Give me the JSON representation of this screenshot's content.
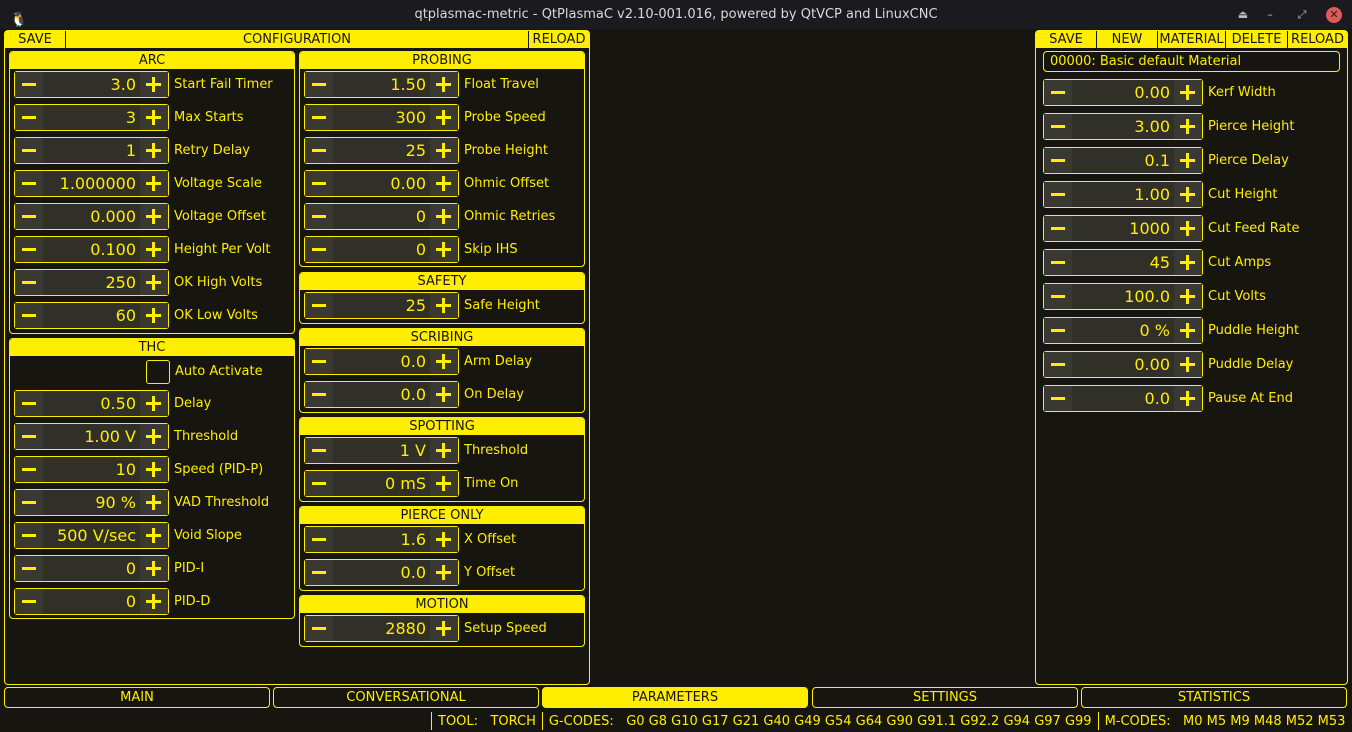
{
  "window": {
    "title": "qtplasmac-metric - QtPlasmaC v2.10-001.016, powered by QtVCP and LinuxCNC"
  },
  "config_header": {
    "save": "SAVE",
    "title": "CONFIGURATION",
    "reload": "RELOAD"
  },
  "groups": [
    {
      "id": "arc",
      "title": "ARC",
      "rows": [
        [
          "3.0",
          "Start Fail Timer"
        ],
        [
          "3",
          "Max Starts"
        ],
        [
          "1",
          "Retry Delay"
        ],
        [
          "1.000000",
          "Voltage Scale"
        ],
        [
          "0.000",
          "Voltage Offset"
        ],
        [
          "0.100",
          "Height Per Volt"
        ],
        [
          "250",
          "OK High Volts"
        ],
        [
          "60",
          "OK Low Volts"
        ]
      ]
    },
    {
      "id": "thc",
      "title": "THC",
      "checkbox": {
        "label": "Auto Activate",
        "checked": false
      },
      "rows": [
        [
          "0.50",
          "Delay"
        ],
        [
          "1.00 V",
          "Threshold"
        ],
        [
          "10",
          "Speed (PID-P)"
        ],
        [
          "90 %",
          "VAD Threshold"
        ],
        [
          "500 V/sec",
          "Void Slope"
        ],
        [
          "0",
          "PID-I"
        ],
        [
          "0",
          "PID-D"
        ]
      ]
    },
    {
      "id": "probing",
      "title": "PROBING",
      "rows": [
        [
          "1.50",
          "Float Travel"
        ],
        [
          "300",
          "Probe Speed"
        ],
        [
          "25",
          "Probe Height"
        ],
        [
          "0.00",
          "Ohmic Offset"
        ],
        [
          "0",
          "Ohmic Retries"
        ],
        [
          "0",
          "Skip IHS"
        ]
      ]
    },
    {
      "id": "safety",
      "title": "SAFETY",
      "rows": [
        [
          "25",
          "Safe Height"
        ]
      ]
    },
    {
      "id": "scribing",
      "title": "SCRIBING",
      "rows": [
        [
          "0.0",
          "Arm Delay"
        ],
        [
          "0.0",
          "On Delay"
        ]
      ]
    },
    {
      "id": "spotting",
      "title": "SPOTTING",
      "rows": [
        [
          "1 V",
          "Threshold"
        ],
        [
          "0 mS",
          "Time On"
        ]
      ]
    },
    {
      "id": "pierce-only",
      "title": "PIERCE ONLY",
      "rows": [
        [
          "1.6",
          "X Offset"
        ],
        [
          "0.0",
          "Y Offset"
        ]
      ]
    },
    {
      "id": "motion",
      "title": "MOTION",
      "rows": [
        [
          "2880",
          "Setup Speed"
        ]
      ]
    }
  ],
  "material_header": {
    "save": "SAVE",
    "new": "NEW",
    "material": "MATERIAL",
    "delete": "DELETE",
    "reload": "RELOAD"
  },
  "material": {
    "selected": "00000: Basic default Material",
    "rows": [
      [
        "0.00",
        "Kerf Width"
      ],
      [
        "3.00",
        "Pierce Height"
      ],
      [
        "0.1",
        "Pierce Delay"
      ],
      [
        "1.00",
        "Cut Height"
      ],
      [
        "1000",
        "Cut Feed Rate"
      ],
      [
        "45",
        "Cut Amps"
      ],
      [
        "100.0",
        "Cut Volts"
      ],
      [
        "0 %",
        "Puddle Height"
      ],
      [
        "0.00",
        "Puddle Delay"
      ],
      [
        "0.0",
        "Pause At End"
      ]
    ]
  },
  "tabs": [
    "MAIN",
    "CONVERSATIONAL",
    "PARAMETERS",
    "SETTINGS",
    "STATISTICS"
  ],
  "active_tab": "PARAMETERS",
  "status": {
    "tool_label": "TOOL:",
    "tool": "TORCH",
    "gcodes_label": "G-CODES:",
    "gcodes": "G0 G8 G10 G17 G21 G40 G49 G54 G64 G90 G91.1 G92.2 G94 G97 G99",
    "mcodes_label": "M-CODES:",
    "mcodes": "M0 M5 M9 M48 M52 M53"
  },
  "colors": {
    "accent": "#ffee00",
    "background": "#16150f"
  }
}
